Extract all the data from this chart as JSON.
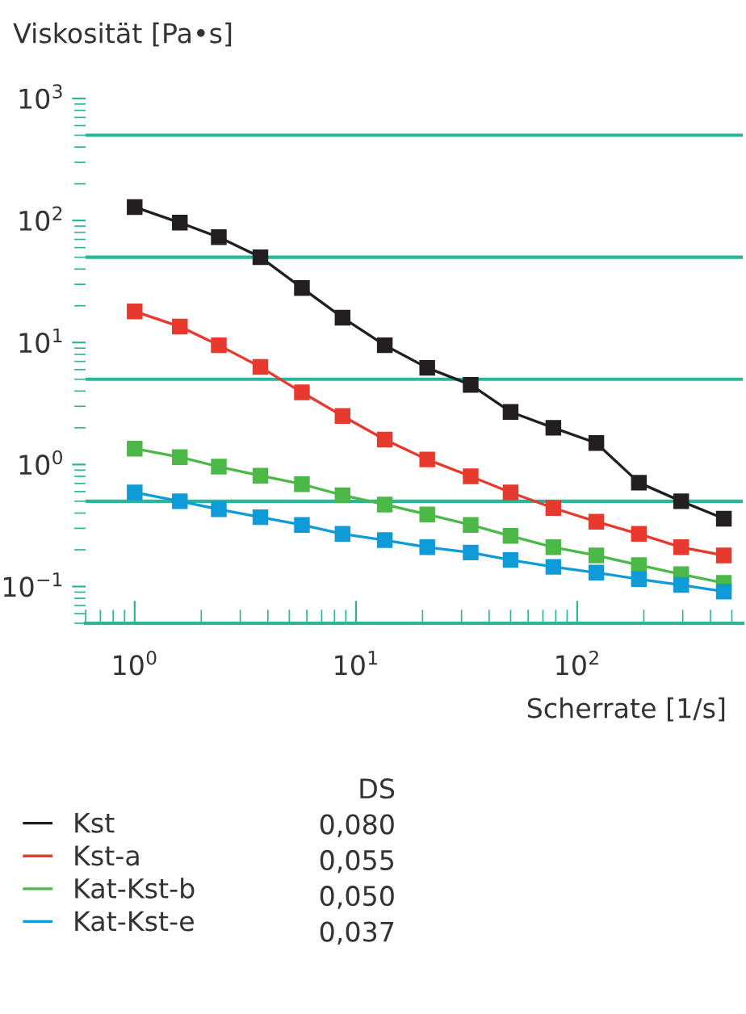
{
  "chart_data": {
    "type": "line",
    "ylabel": "Viskosität [Pa•s]",
    "xlabel": "Scherrate [1/s]",
    "log": "xy",
    "xlim": [
      0.6,
      560
    ],
    "ylim": [
      0.05,
      1000
    ],
    "xticks": [
      {
        "value": 1,
        "label": "10$^{0}$"
      },
      {
        "value": 10,
        "label": "10$^{1}$"
      },
      {
        "value": 100,
        "label": "10$^{2}$"
      }
    ],
    "yticks": [
      {
        "value": 0.1,
        "label": "10$^{−1}$"
      },
      {
        "value": 1,
        "label": "10$^{0}$"
      },
      {
        "value": 10,
        "label": "10$^{1}$"
      },
      {
        "value": 100,
        "label": "10$^{2}$"
      },
      {
        "value": 1000,
        "label": "10$^{3}$"
      }
    ],
    "x": [
      1,
      1.6,
      2.4,
      3.7,
      5.7,
      8.7,
      13.5,
      21,
      33,
      50,
      78,
      122,
      190,
      295,
      460
    ],
    "series": [
      {
        "name": "Kst",
        "color": "#231f20",
        "values": [
          129,
          96,
          73,
          50,
          28,
          16,
          9.5,
          6.2,
          4.5,
          2.7,
          2.0,
          1.5,
          0.71,
          0.5,
          0.36
        ]
      },
      {
        "name": "Kst-a",
        "color": "#e8392f",
        "values": [
          18,
          13.5,
          9.5,
          6.3,
          3.9,
          2.5,
          1.6,
          1.1,
          0.8,
          0.59,
          0.44,
          0.34,
          0.27,
          0.21,
          0.18
        ]
      },
      {
        "name": "Kat-Kst-b",
        "color": "#4cb848",
        "values": [
          1.35,
          1.15,
          0.96,
          0.81,
          0.69,
          0.56,
          0.47,
          0.39,
          0.32,
          0.26,
          0.21,
          0.18,
          0.15,
          0.126,
          0.107
        ]
      },
      {
        "name": "Kat-Kst-e",
        "color": "#0f9ad8",
        "values": [
          0.59,
          0.5,
          0.43,
          0.37,
          0.32,
          0.27,
          0.24,
          0.21,
          0.19,
          0.165,
          0.145,
          0.13,
          0.115,
          0.103,
          0.091
        ]
      }
    ],
    "ref_lines": [
      {
        "axis": "y",
        "value": 0.5,
        "color": "#2bb59a"
      },
      {
        "axis": "y",
        "value": 5,
        "color": "#2bb59a"
      },
      {
        "axis": "y",
        "value": 50,
        "color": "#2bb59a"
      },
      {
        "axis": "y",
        "value": 500,
        "color": "#2bb59a"
      }
    ],
    "marker": "square",
    "line_style": "solid",
    "legend": "bottom",
    "grid": false,
    "legend_title": "DS",
    "annotations": [
      "0,080",
      "0,055",
      "0,050",
      "0,037"
    ]
  }
}
